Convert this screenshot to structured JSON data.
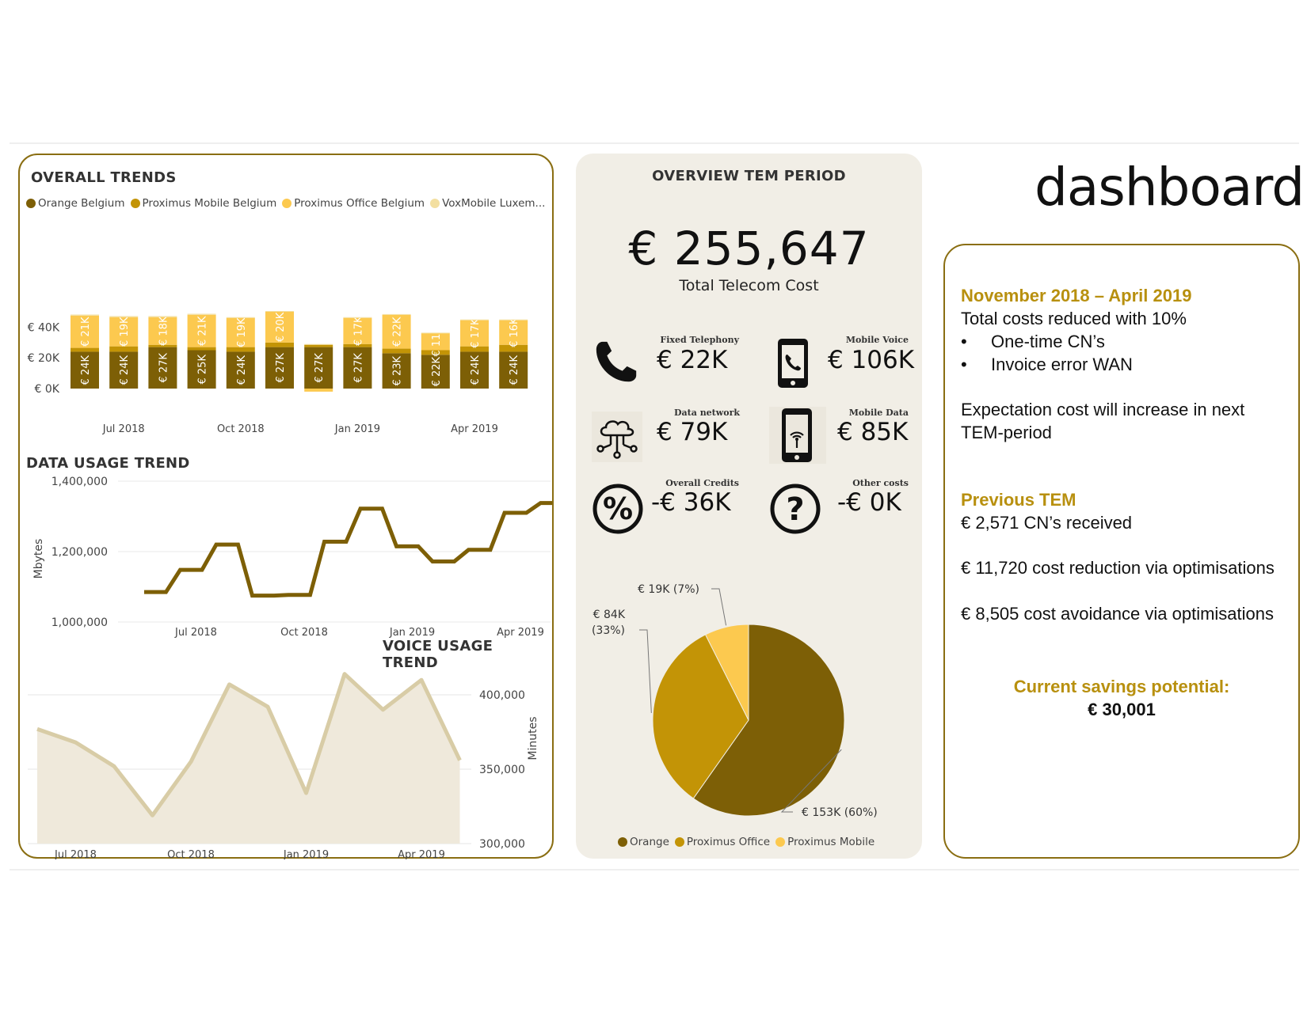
{
  "page_title": "dashboard",
  "overall_trends": {
    "title": "OVERALL TRENDS",
    "legend": [
      {
        "label": "Orange Belgium",
        "color": "#7d5f06"
      },
      {
        "label": "Proximus Mobile Belgium",
        "color": "#c39406"
      },
      {
        "label": "Proximus Office Belgium",
        "color": "#fcc94f"
      },
      {
        "label": "VoxMobile Luxem...",
        "color": "#f3dfa0"
      }
    ],
    "y_ticks": [
      "€ 40K",
      "€ 20K",
      "€ 0K"
    ],
    "x_ticks": [
      "Jul 2018",
      "Oct 2018",
      "Jan 2019",
      "Apr 2019"
    ]
  },
  "data_usage": {
    "title": "DATA USAGE TREND",
    "ylabel": "Mbytes",
    "y_ticks": [
      "1,400,000",
      "1,200,000",
      "1,000,000"
    ],
    "x_ticks": [
      "Jul 2018",
      "Oct 2018",
      "Jan 2019",
      "Apr 2019"
    ]
  },
  "voice_usage": {
    "title": "VOICE USAGE TREND",
    "ylabel": "Minutes",
    "y_ticks": [
      "400,000",
      "350,000",
      "300,000"
    ],
    "x_ticks": [
      "Jul 2018",
      "Oct 2018",
      "Jan 2019",
      "Apr 2019"
    ]
  },
  "overview": {
    "title": "OVERVIEW TEM PERIOD",
    "total_value": "€ 255,647",
    "total_label": "Total Telecom Cost",
    "kpis": [
      {
        "label": "Fixed Telephony",
        "value": "€ 22K",
        "icon": "phone-icon"
      },
      {
        "label": "Mobile Voice",
        "value": "€ 106K",
        "icon": "mobile-phone-icon"
      },
      {
        "label": "Data network",
        "value": "€ 79K",
        "icon": "cloud-network-icon"
      },
      {
        "label": "Mobile Data",
        "value": "€ 85K",
        "icon": "mobile-data-icon"
      },
      {
        "label": "Overall Credits",
        "value": "-€ 36K",
        "icon": "percent-icon"
      },
      {
        "label": "Other costs",
        "value": "-€ 0K",
        "icon": "question-icon"
      }
    ],
    "pie_legend": [
      {
        "label": "Orange",
        "color": "#7d5f06"
      },
      {
        "label": "Proximus Office",
        "color": "#c39406"
      },
      {
        "label": "Proximus Mobile",
        "color": "#fcc94f"
      }
    ]
  },
  "summary": {
    "period": "November 2018 – April 2019",
    "line1": "Total costs reduced with 10%",
    "bullets": [
      "One-time CN’s",
      "Invoice error WAN"
    ],
    "expectation_line1": "Expectation cost will increase in next",
    "expectation_line2": "TEM-period",
    "previous_title": "Previous TEM",
    "prev_lines": [
      "€ 2,571 CN’s received",
      "€ 11,720 cost reduction via optimisations",
      "€ 8,505 cost avoidance via optimisations"
    ],
    "savings_label": "Current savings potential:",
    "savings_value": "€ 30,001"
  },
  "chart_data": [
    {
      "type": "bar",
      "stacked": true,
      "title": "OVERALL TRENDS",
      "categories": [
        "2018-06",
        "2018-07",
        "2018-08",
        "2018-09",
        "2018-10",
        "2018-11",
        "2018-12",
        "2019-01",
        "2019-02",
        "2019-03",
        "2019-04",
        "2019-05"
      ],
      "ylim": [
        -5000,
        55000
      ],
      "series": [
        {
          "name": "Orange Belgium",
          "values": [
            24000,
            24000,
            27000,
            25000,
            24000,
            27000,
            27000,
            27000,
            23000,
            22000,
            24000,
            24000
          ],
          "labels": [
            "€ 24K",
            "€ 24K",
            "€ 27K",
            "€ 25K",
            "€ 24K",
            "€ 27K",
            "€ 27K",
            "€ 27K",
            "€ 23K",
            "€ 22K",
            "€ 24K",
            "€ 24K"
          ]
        },
        {
          "name": "Proximus Mobile Belgium",
          "values": [
            2500,
            3500,
            1500,
            2000,
            3000,
            3000,
            1500,
            2000,
            3000,
            3000,
            3500,
            4500
          ],
          "labels": [
            "",
            "",
            "",
            "",
            "",
            "",
            "",
            "",
            "",
            "",
            "",
            ""
          ]
        },
        {
          "name": "Proximus Office Belgium",
          "values": [
            21000,
            19000,
            18000,
            21000,
            19000,
            20000,
            -2000,
            17000,
            22000,
            11000,
            17000,
            16000
          ],
          "labels": [
            "€ 21K",
            "€ 19K",
            "€ 18K",
            "€ 21K",
            "€ 19K",
            "€ 20K",
            "",
            "€ 17K",
            "€ 22K",
            "€ 11K",
            "€ 17K",
            "€ 16K"
          ]
        },
        {
          "name": "VoxMobile Luxem...",
          "values": [
            700,
            700,
            700,
            700,
            500,
            500,
            500,
            500,
            500,
            400,
            500,
            500
          ],
          "labels": [
            "",
            "",
            "",
            "",
            "",
            "",
            "",
            "",
            "",
            "",
            "",
            ""
          ]
        }
      ]
    },
    {
      "type": "line",
      "step": true,
      "title": "DATA USAGE TREND",
      "ylabel": "Mbytes",
      "x": [
        "2018-06",
        "2018-07",
        "2018-08",
        "2018-09",
        "2018-10",
        "2018-11",
        "2018-12",
        "2019-01",
        "2019-02",
        "2019-03",
        "2019-04",
        "2019-05"
      ],
      "y": [
        1085000,
        1148000,
        1220000,
        1075000,
        1077000,
        1228000,
        1322000,
        1215000,
        1172000,
        1205000,
        1310000,
        1338000
      ],
      "ylim": [
        1000000,
        1400000
      ]
    },
    {
      "type": "area",
      "title": "VOICE USAGE TREND",
      "ylabel": "Minutes",
      "x": [
        "2018-06",
        "2018-07",
        "2018-08",
        "2018-09",
        "2018-10",
        "2018-11",
        "2018-12",
        "2019-01",
        "2019-02",
        "2019-03",
        "2019-04",
        "2019-05"
      ],
      "y": [
        377000,
        368000,
        352000,
        319000,
        355000,
        407000,
        392000,
        334000,
        414000,
        390000,
        410000,
        356000
      ],
      "ylim": [
        300000,
        400000
      ]
    },
    {
      "type": "pie",
      "slices": [
        {
          "name": "Orange",
          "value": 153000,
          "label": "€ 153K (60%)",
          "color": "#7d5f06"
        },
        {
          "name": "Proximus Office",
          "value": 84000,
          "label": "€ 84K (33%)",
          "color": "#c39406"
        },
        {
          "name": "Proximus Mobile",
          "value": 19000,
          "label": "€ 19K (7%)",
          "color": "#fcc94f"
        }
      ]
    }
  ]
}
